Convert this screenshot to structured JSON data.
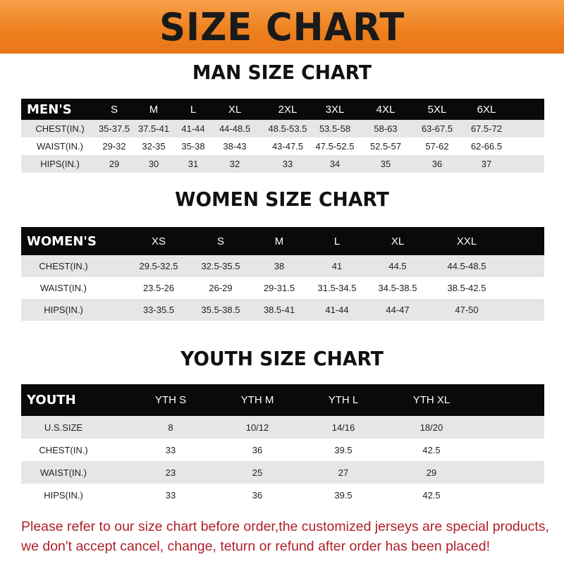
{
  "banner_title": "SIZE CHART",
  "men": {
    "title": "MAN SIZE CHART",
    "header": [
      "MEN'S",
      "S",
      "M",
      "L",
      "XL",
      "2XL",
      "3XL",
      "4XL",
      "5XL",
      "6XL"
    ],
    "rows": [
      [
        "CHEST(IN.)",
        "35-37.5",
        "37.5-41",
        "41-44",
        "44-48.5",
        "48.5-53.5",
        "53.5-58",
        "58-63",
        "63-67.5",
        "67.5-72"
      ],
      [
        "WAIST(IN.)",
        "29-32",
        "32-35",
        "35-38",
        "38-43",
        "43-47.5",
        "47.5-52.5",
        "52.5-57",
        "57-62",
        "62-66.5"
      ],
      [
        "HIPS(IN.)",
        "29",
        "30",
        "31",
        "32",
        "33",
        "34",
        "35",
        "36",
        "37"
      ]
    ]
  },
  "women": {
    "title": "WOMEN SIZE CHART",
    "header": [
      "WOMEN'S",
      "XS",
      "S",
      "M",
      "L",
      "XL",
      "XXL"
    ],
    "rows": [
      [
        "CHEST(IN.)",
        "29.5-32.5",
        "32.5-35.5",
        "38",
        "41",
        "44.5",
        "44.5-48.5"
      ],
      [
        "WAIST(IN.)",
        "23.5-26",
        "26-29",
        "29-31.5",
        "31.5-34.5",
        "34.5-38.5",
        "38.5-42.5"
      ],
      [
        "HIPS(IN.)",
        "33-35.5",
        "35.5-38.5",
        "38.5-41",
        "41-44",
        "44-47",
        "47-50"
      ]
    ]
  },
  "youth": {
    "title": "YOUTH SIZE CHART",
    "header": [
      "YOUTH",
      "YTH S",
      "YTH M",
      "YTH L",
      "YTH XL"
    ],
    "rows": [
      [
        "U.S.SIZE",
        "8",
        "10/12",
        "14/16",
        "18/20"
      ],
      [
        "CHEST(IN.)",
        "33",
        "36",
        "39.5",
        "42.5"
      ],
      [
        "WAIST(IN.)",
        "23",
        "25",
        "27",
        "29"
      ],
      [
        "HIPS(IN.)",
        "33",
        "36",
        "39.5",
        "42.5"
      ]
    ]
  },
  "notice": {
    "line1": "Please refer to our size chart before order,the customized jerseys are special products,",
    "line2": "we don't accept cancel, change, teturn or refund after order has been placed!"
  },
  "colors": {
    "banner": "#ee7f1c",
    "header_bg": "#0a0a0a",
    "row_gray": "#e6e6e6",
    "notice": "#b0202a"
  }
}
